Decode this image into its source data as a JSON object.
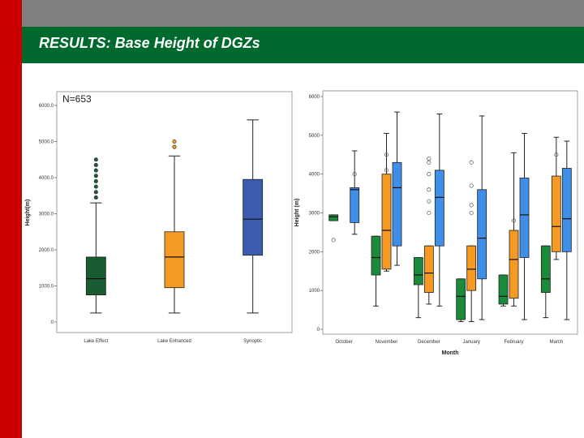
{
  "slide": {
    "title": "RESULTS: Base Height of DGZs"
  },
  "colors": {
    "red": "#cc0000",
    "gray": "#808080",
    "green_header": "#006a2e",
    "lake_effect": "#1a5c32",
    "lake_enhanced": "#f59a23",
    "synoptic": "#3a5bb0",
    "month_green": "#1b8a3a",
    "month_orange": "#f59a23",
    "month_blue": "#3f8ee8"
  },
  "chart_data": [
    {
      "type": "box",
      "title": "",
      "annotation": "N=653",
      "xlabel": "",
      "ylabel": "Height(m)",
      "ylim": [
        0,
        6000
      ],
      "yticks": [
        0,
        1000,
        2000,
        3000,
        4000,
        5000,
        6000
      ],
      "yticklabels": [
        "0",
        "1000.0",
        "2000.0",
        "3000.0",
        "4000.0",
        "5000.0",
        "6000.0"
      ],
      "categories": [
        "Lake Effect",
        "Lake Enhanced",
        "Synoptic"
      ],
      "boxes": [
        {
          "min": 250,
          "q1": 750,
          "median": 1200,
          "q3": 1800,
          "max": 3300,
          "outliers": [
            3450,
            3600,
            3750,
            3900,
            4050,
            4200,
            4350,
            4500
          ]
        },
        {
          "min": 250,
          "q1": 950,
          "median": 1800,
          "q3": 2500,
          "max": 4600,
          "outliers": [
            4850,
            5000
          ]
        },
        {
          "min": 250,
          "q1": 1850,
          "median": 2850,
          "q3": 3950,
          "max": 5600,
          "outliers": []
        }
      ]
    },
    {
      "type": "box",
      "title": "",
      "xlabel": "Month",
      "ylabel": "Height (m)",
      "ylim": [
        0,
        6000
      ],
      "yticks": [
        0,
        1000,
        2000,
        3000,
        4000,
        5000,
        6000
      ],
      "yticklabels": [
        "0",
        "1000",
        "2000",
        "3000",
        "4000",
        "5000",
        "6000"
      ],
      "categories": [
        "October",
        "November",
        "December",
        "January",
        "February",
        "March"
      ],
      "series": [
        {
          "name": "Lake Effect",
          "boxes": [
            {
              "min": 2800,
              "q1": 2800,
              "median": 2900,
              "q3": 2950,
              "max": 2950,
              "outliers": [
                2300
              ]
            },
            {
              "min": 600,
              "q1": 1400,
              "median": 1850,
              "q3": 2400,
              "max": 2400,
              "outliers": []
            },
            {
              "min": 300,
              "q1": 1150,
              "median": 1400,
              "q3": 1850,
              "max": 1850,
              "outliers": []
            },
            {
              "min": 200,
              "q1": 250,
              "median": 850,
              "q3": 1300,
              "max": 1300,
              "outliers": []
            },
            {
              "min": 600,
              "q1": 650,
              "median": 850,
              "q3": 1400,
              "max": 1400,
              "outliers": []
            },
            {
              "min": 300,
              "q1": 950,
              "median": 1300,
              "q3": 2150,
              "max": 2150,
              "outliers": []
            }
          ]
        },
        {
          "name": "Lake Enhanced",
          "boxes": [
            null,
            {
              "min": 1500,
              "q1": 1550,
              "median": 2550,
              "q3": 4000,
              "max": 5050,
              "outliers": [
                4100,
                4500
              ]
            },
            {
              "min": 650,
              "q1": 950,
              "median": 1450,
              "q3": 2150,
              "max": 2150,
              "outliers": [
                3000,
                3300,
                3600,
                4000,
                4300,
                4400
              ]
            },
            {
              "min": 200,
              "q1": 1000,
              "median": 1550,
              "q3": 2150,
              "max": 2150,
              "outliers": [
                3000,
                3200,
                3700,
                4300
              ]
            },
            {
              "min": 600,
              "q1": 800,
              "median": 1800,
              "q3": 2550,
              "max": 4550,
              "outliers": [
                2800
              ]
            },
            {
              "min": 1800,
              "q1": 2000,
              "median": 2650,
              "q3": 3950,
              "max": 4950,
              "outliers": [
                4500
              ]
            }
          ]
        },
        {
          "name": "Synoptic",
          "boxes": [
            {
              "min": 2450,
              "q1": 2750,
              "median": 3600,
              "q3": 3650,
              "max": 4600,
              "outliers": [
                4000
              ]
            },
            {
              "min": 1650,
              "q1": 2150,
              "median": 3650,
              "q3": 4300,
              "max": 5600,
              "outliers": []
            },
            {
              "min": 600,
              "q1": 2150,
              "median": 3400,
              "q3": 4100,
              "max": 5550,
              "outliers": []
            },
            {
              "min": 250,
              "q1": 1300,
              "median": 2350,
              "q3": 3600,
              "max": 5500,
              "outliers": []
            },
            {
              "min": 250,
              "q1": 1850,
              "median": 2950,
              "q3": 3900,
              "max": 5050,
              "outliers": []
            },
            {
              "min": 250,
              "q1": 2000,
              "median": 2850,
              "q3": 4150,
              "max": 4850,
              "outliers": []
            }
          ]
        }
      ]
    }
  ]
}
